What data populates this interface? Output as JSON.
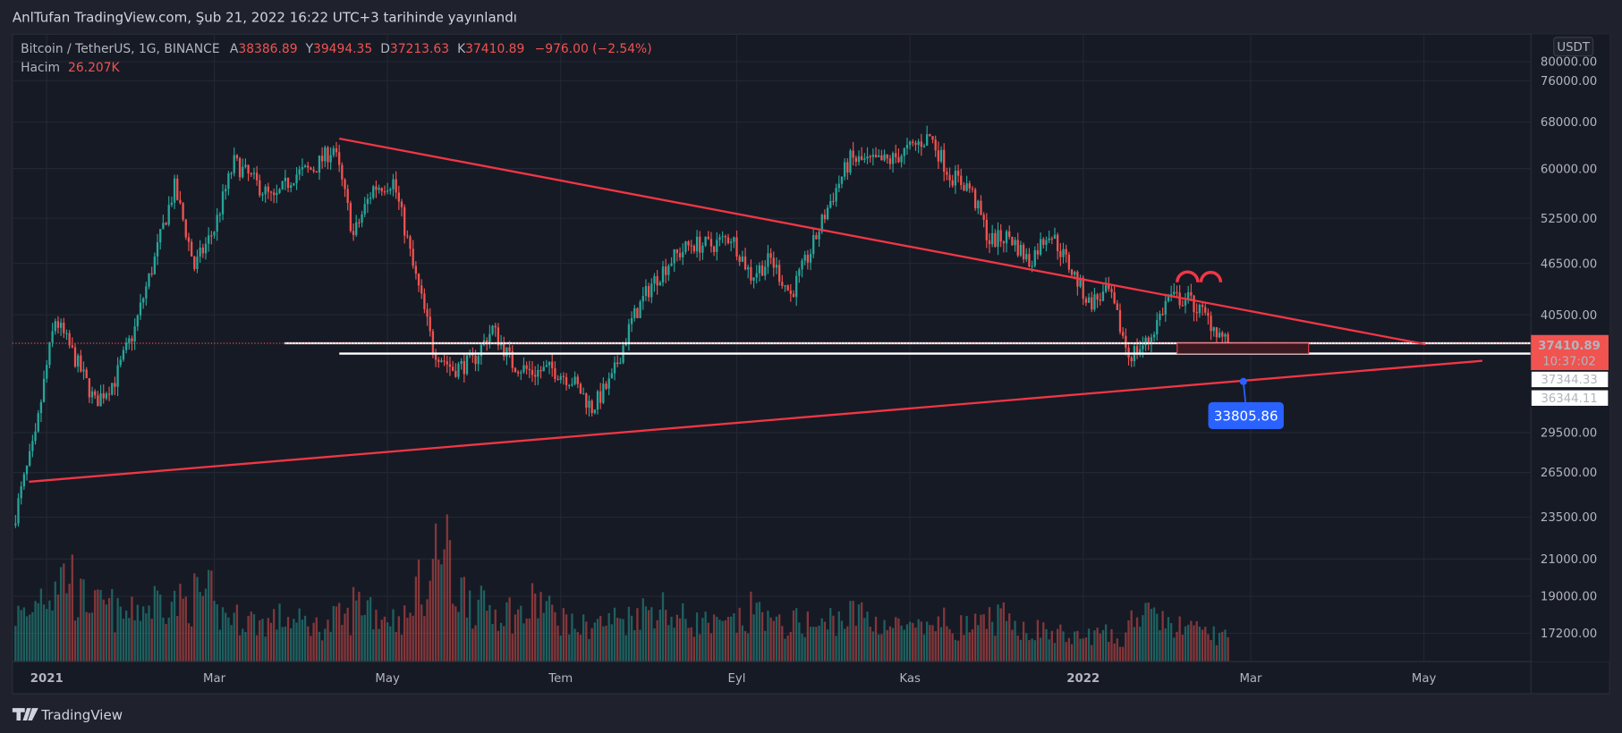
{
  "header": {
    "publisher_line": "AnlTufan TradingView.com, Şub 21, 2022 16:22 UTC+3 tarihinde yayınlandı"
  },
  "legend": {
    "symbol": "Bitcoin / TetherUS, 1G, BINANCE",
    "open_label": "A",
    "open": "38386.89",
    "high_label": "Y",
    "high": "39494.35",
    "low_label": "D",
    "low": "37213.63",
    "close_label": "K",
    "close": "37410.89",
    "change": "−976.00 (−2.54%)",
    "volume_label": "Hacim",
    "volume": "26.207K"
  },
  "price_axis": {
    "currency": "USDT",
    "ticks": [
      "80000.00",
      "76000.00",
      "68000.00",
      "60000.00",
      "52500.00",
      "46500.00",
      "40500.00",
      "29500.00",
      "26500.00",
      "23500.00",
      "21000.00",
      "19000.00",
      "17200.00"
    ],
    "current_price": "37410.89",
    "countdown": "10:37:02",
    "line_labels": [
      "37344.33",
      "36344.11"
    ]
  },
  "time_axis": {
    "ticks": [
      "2021",
      "Mar",
      "May",
      "Tem",
      "Eyl",
      "Kas",
      "2022",
      "Mar",
      "May"
    ]
  },
  "annotations": {
    "price_label": "33805.86"
  },
  "footer": {
    "brand": "TradingView"
  },
  "colors": {
    "up": "#26a69a",
    "down": "#ef5350",
    "trendline": "#f23645",
    "label_blue": "#2962ff",
    "background": "#161a25"
  },
  "chart_data": {
    "type": "candlestick",
    "title": "Bitcoin / TetherUS, 1G, BINANCE",
    "x_start": "2020-12-21",
    "x_step_days": 7,
    "y_scale": "log",
    "ylim": [
      16500,
      82000
    ],
    "weekly_close": [
      23700,
      29000,
      40000,
      36000,
      32000,
      34000,
      39000,
      47000,
      57000,
      46000,
      51000,
      61000,
      58000,
      55000,
      59000,
      60000,
      63500,
      50000,
      57000,
      58000,
      46000,
      37000,
      35000,
      35700,
      39000,
      35500,
      34700,
      35000,
      34000,
      31500,
      34000,
      39800,
      44000,
      47000,
      49000,
      48800,
      50000,
      45000,
      47000,
      42700,
      48000,
      55000,
      61500,
      61000,
      61300,
      63300,
      65500,
      59000,
      57000,
      49400,
      50000,
      46700,
      50800,
      46200,
      41800,
      43000,
      36300,
      37700,
      42400,
      42200,
      40000,
      37410.89
    ],
    "weekly_volume_k": [
      60,
      90,
      110,
      80,
      70,
      60,
      70,
      80,
      75,
      85,
      60,
      55,
      50,
      55,
      50,
      45,
      55,
      75,
      60,
      55,
      95,
      140,
      90,
      70,
      65,
      60,
      75,
      55,
      45,
      50,
      55,
      65,
      70,
      55,
      50,
      45,
      50,
      65,
      45,
      50,
      45,
      55,
      60,
      50,
      45,
      40,
      50,
      45,
      45,
      55,
      45,
      40,
      35,
      30,
      35,
      30,
      60,
      55,
      45,
      40,
      35,
      26.207
    ]
  }
}
